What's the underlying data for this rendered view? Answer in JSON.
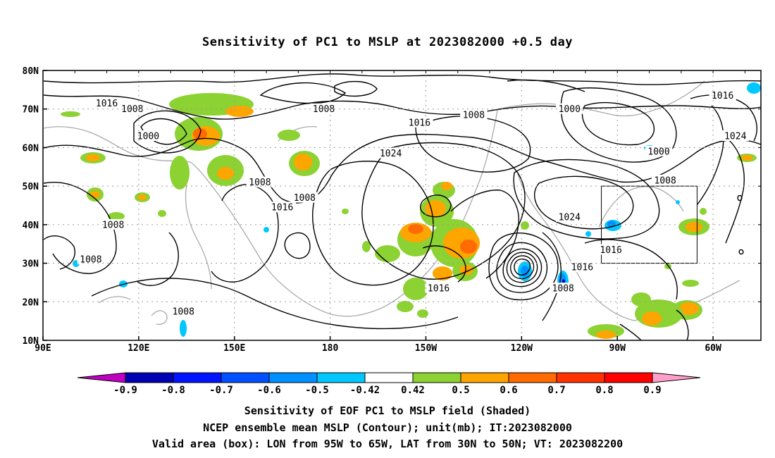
{
  "title": "Sensitivity of PC1 to MSLP at 2023082000 +0.5 day",
  "captions": {
    "line1": "Sensitivity of EOF PC1 to MSLP field (Shaded)",
    "line2": "NCEP ensemble mean MSLP (Contour); unit(mb); IT:2023082000",
    "line3": "Valid area (box): LON from 95W to 65W, LAT from 30N to 50N; VT: 2023082200"
  },
  "map": {
    "lon_range": [
      90,
      315
    ],
    "lat_range": [
      10,
      80
    ],
    "grid": true,
    "lat_ticks": [
      {
        "lat": 80,
        "label": "80N"
      },
      {
        "lat": 70,
        "label": "70N"
      },
      {
        "lat": 60,
        "label": "60N"
      },
      {
        "lat": 50,
        "label": "50N"
      },
      {
        "lat": 40,
        "label": "40N"
      },
      {
        "lat": 30,
        "label": "30N"
      },
      {
        "lat": 20,
        "label": "20N"
      },
      {
        "lat": 10,
        "label": "10N"
      }
    ],
    "lon_ticks": [
      {
        "lon": 90,
        "label": "90E"
      },
      {
        "lon": 120,
        "label": "120E"
      },
      {
        "lon": 150,
        "label": "150E"
      },
      {
        "lon": 180,
        "label": "180"
      },
      {
        "lon": 210,
        "label": "150W"
      },
      {
        "lon": 240,
        "label": "120W"
      },
      {
        "lon": 270,
        "label": "90W"
      },
      {
        "lon": 300,
        "label": "60W"
      }
    ],
    "valid_box": {
      "lon": [
        265,
        295
      ],
      "lat": [
        30,
        50
      ]
    },
    "contour_labels": [
      {
        "text": "1016",
        "lon": 110,
        "lat": 71.5
      },
      {
        "text": "1008",
        "lon": 118,
        "lat": 70
      },
      {
        "text": "1000",
        "lon": 123,
        "lat": 63
      },
      {
        "text": "1008",
        "lon": 178,
        "lat": 70
      },
      {
        "text": "1016",
        "lon": 208,
        "lat": 66.5
      },
      {
        "text": "1008",
        "lon": 225,
        "lat": 68.5
      },
      {
        "text": "1000",
        "lon": 255,
        "lat": 70
      },
      {
        "text": "1016",
        "lon": 303,
        "lat": 73.5
      },
      {
        "text": "1024",
        "lon": 307,
        "lat": 63
      },
      {
        "text": "1000",
        "lon": 283,
        "lat": 59
      },
      {
        "text": "1008",
        "lon": 285,
        "lat": 51.5
      },
      {
        "text": "1024",
        "lon": 199,
        "lat": 58.5
      },
      {
        "text": "1008",
        "lon": 158,
        "lat": 51
      },
      {
        "text": "1016",
        "lon": 165,
        "lat": 44.5
      },
      {
        "text": "1008",
        "lon": 172,
        "lat": 47
      },
      {
        "text": "1008",
        "lon": 112,
        "lat": 40
      },
      {
        "text": "1008",
        "lon": 105,
        "lat": 31
      },
      {
        "text": "1008",
        "lon": 134,
        "lat": 17.5
      },
      {
        "text": "1016",
        "lon": 214,
        "lat": 23.5
      },
      {
        "text": "1024",
        "lon": 255,
        "lat": 42
      },
      {
        "text": "1016",
        "lon": 268,
        "lat": 33.5
      },
      {
        "text": "1016",
        "lon": 259,
        "lat": 29
      },
      {
        "text": "1008",
        "lon": 253,
        "lat": 23.5
      }
    ]
  },
  "colorbar": {
    "labels": [
      "-0.9",
      "-0.8",
      "-0.7",
      "-0.6",
      "-0.5",
      "-0.42",
      "0.42",
      "0.5",
      "0.6",
      "0.7",
      "0.8",
      "0.9"
    ],
    "colors": [
      "#c000c0",
      "#0000b4",
      "#0014ff",
      "#0050ff",
      "#0090ff",
      "#00c8ff",
      "#ffffff",
      "#8cd232",
      "#ffa500",
      "#ff6b00",
      "#ff3200",
      "#ff0000",
      "#ff9ec8"
    ]
  }
}
